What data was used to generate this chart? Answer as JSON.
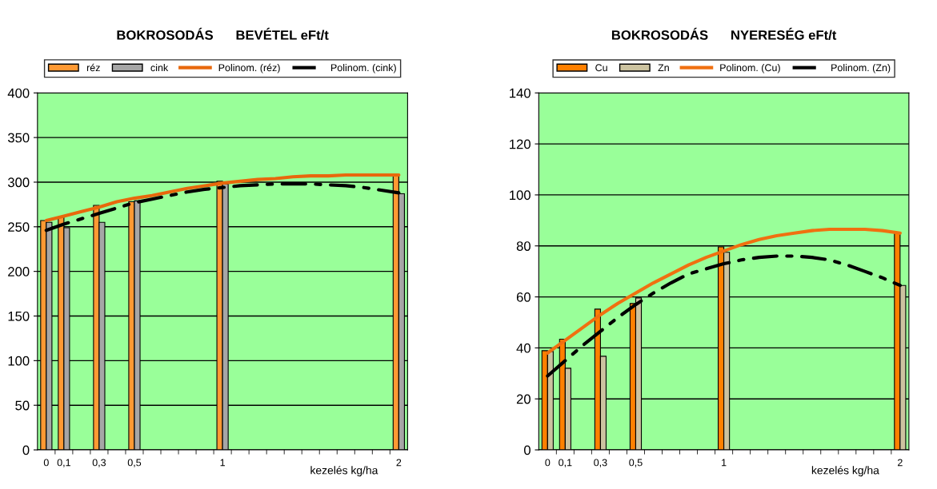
{
  "chart_data": [
    {
      "type": "bar",
      "title": "BOKROSODÁS      BEVÉTEL eFt/t",
      "xlabel": "kezelés kg/ha",
      "categories": [
        "0",
        "0,1",
        null,
        "0,3",
        null,
        "0,5",
        null,
        null,
        null,
        null,
        "1",
        null,
        null,
        null,
        null,
        null,
        null,
        null,
        null,
        null,
        "2"
      ],
      "ylim": [
        0,
        400
      ],
      "yticks": [
        0,
        50,
        100,
        150,
        200,
        250,
        300,
        350,
        400
      ],
      "grid": "y",
      "legend": "top",
      "series": [
        {
          "name": "réz",
          "color": "#ff9933",
          "values": [
            257,
            261,
            null,
            274,
            null,
            278,
            null,
            null,
            null,
            null,
            301,
            null,
            null,
            null,
            null,
            null,
            null,
            null,
            null,
            null,
            308
          ]
        },
        {
          "name": "cink",
          "color": "#a6a6a6",
          "values": [
            255,
            249,
            null,
            255,
            null,
            279,
            null,
            null,
            null,
            null,
            298,
            null,
            null,
            null,
            null,
            null,
            null,
            null,
            null,
            null,
            287
          ]
        },
        {
          "name": "Polinom. (réz)",
          "type": "line",
          "color": "#e8680c",
          "line_style": "solid",
          "values": [
            257,
            262,
            267,
            272,
            278,
            282,
            285,
            289,
            293,
            296,
            299,
            301,
            303,
            304,
            306,
            307,
            307,
            308,
            308,
            308,
            308
          ]
        },
        {
          "name": "Polinom. (cink)",
          "type": "line",
          "color": "#000000",
          "line_style": "dashdot",
          "values": [
            246,
            253,
            259,
            265,
            271,
            277,
            281,
            285,
            289,
            292,
            294,
            296,
            297,
            298,
            298,
            298,
            297,
            296,
            294,
            291,
            288
          ]
        }
      ]
    },
    {
      "type": "bar",
      "title": "BOKROSODÁS      NYERESÉG eFt/t",
      "xlabel": "kezelés kg/ha",
      "categories": [
        "0",
        "0,1",
        null,
        "0,3",
        null,
        "0,5",
        null,
        null,
        null,
        null,
        "1",
        null,
        null,
        null,
        null,
        null,
        null,
        null,
        null,
        null,
        "2"
      ],
      "ylim": [
        0,
        140
      ],
      "yticks": [
        0,
        20,
        40,
        60,
        80,
        100,
        120,
        140
      ],
      "grid": "y",
      "legend": "top",
      "series": [
        {
          "name": "Cu",
          "color": "#ff8000",
          "values": [
            38.9,
            43.4,
            null,
            55.2,
            null,
            57.4,
            null,
            null,
            null,
            null,
            79.6,
            null,
            null,
            null,
            null,
            null,
            null,
            null,
            null,
            null,
            85
          ]
        },
        {
          "name": "Zn",
          "color": "#ccc3a0",
          "values": [
            38.6,
            32,
            null,
            36.7,
            null,
            59.6,
            null,
            null,
            null,
            null,
            77.5,
            null,
            null,
            null,
            null,
            null,
            null,
            null,
            null,
            null,
            64.5
          ]
        },
        {
          "name": "Polinom. (Cu)",
          "type": "line",
          "color": "#f07010",
          "line_style": "solid",
          "values": [
            38,
            43,
            48,
            53,
            57.5,
            61.5,
            65.5,
            69,
            72.5,
            75.5,
            78,
            80.5,
            82.5,
            84,
            85,
            86,
            86.5,
            86.5,
            86.5,
            86,
            85
          ]
        },
        {
          "name": "Polinom. (Zn)",
          "type": "line",
          "color": "#000000",
          "line_style": "dashdot",
          "values": [
            29,
            35,
            41,
            46.5,
            52,
            57,
            61.5,
            65.5,
            69,
            71,
            73,
            74.5,
            75.5,
            76,
            76,
            75.5,
            74.5,
            72.5,
            70,
            67.5,
            64.5
          ]
        }
      ]
    }
  ]
}
